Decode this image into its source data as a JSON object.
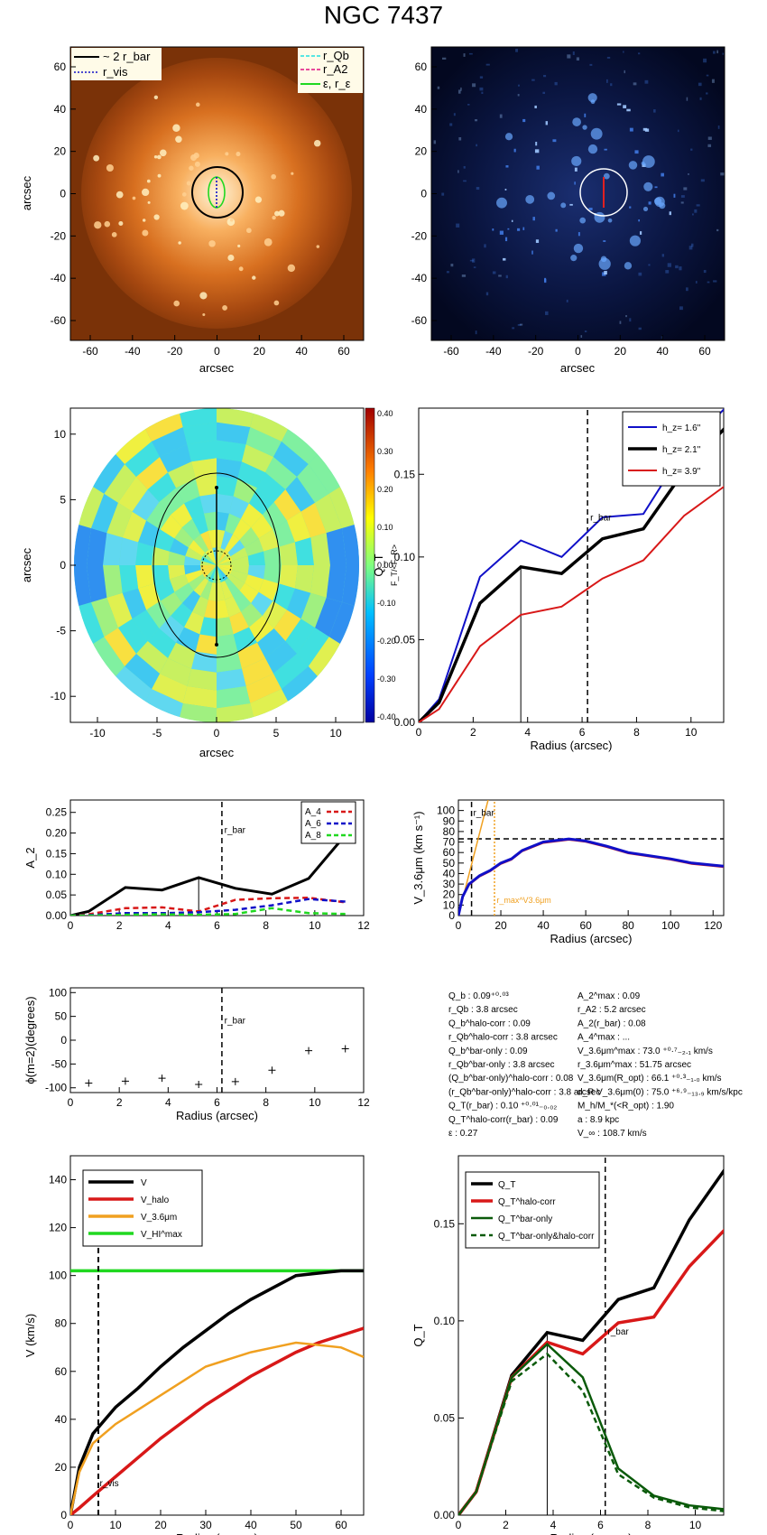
{
  "title": "NGC 7437",
  "colors": {
    "blue": "#1010c8",
    "black": "#000000",
    "red": "#d81818",
    "orange": "#f0a020",
    "green": "#20d820",
    "darkgreen": "#0a5a0a"
  },
  "panel1": {
    "xlabel": "arcsec",
    "ylabel": "arcsec",
    "legend_left": [
      "~ 2 r_bar",
      "r_vis"
    ],
    "legend_right": [
      "r_Qb",
      "r_A2",
      "ε, r_ε"
    ],
    "ticks": [
      "-60",
      "-40",
      "-20",
      "0",
      "20",
      "40",
      "60"
    ]
  },
  "panel2": {
    "xlabel": "arcsec",
    "ticks": [
      "-60",
      "-40",
      "-20",
      "0",
      "20",
      "40",
      "60"
    ]
  },
  "panel3": {
    "xlabel": "arcsec",
    "ylabel": "arcsec",
    "xticks": [
      "-10",
      "-5",
      "0",
      "5",
      "10"
    ],
    "yticks": [
      "10",
      "5",
      "0",
      "-5",
      "-10"
    ],
    "cbar_label": "F_T/<F_R>",
    "cbar_ticks": [
      "0.40",
      "0.30",
      "0.20",
      "0.10",
      "0.00",
      "-0.10",
      "-0.20",
      "-0.30",
      "-0.40"
    ]
  },
  "panel4": {
    "xlabel": "Radius (arcsec)",
    "ylabel": "Q_T",
    "rbar_label": "r_bar",
    "legend": [
      "h_z=  1.6''",
      "h_z=  2.1''",
      "h_z=  3.9''"
    ],
    "chart_data": {
      "type": "line",
      "xlim": [
        0,
        11.2
      ],
      "ylim": [
        0,
        0.19
      ],
      "x": [
        0,
        0.75,
        2.25,
        3.75,
        5.25,
        6.75,
        8.25,
        9.75,
        11.25
      ],
      "series": [
        {
          "name": "h_z=  1.6''",
          "values": [
            0,
            0.014,
            0.088,
            0.11,
            0.1,
            0.124,
            0.126,
            0.165,
            0.19
          ]
        },
        {
          "name": "h_z=  2.1''",
          "values": [
            0,
            0.012,
            0.072,
            0.094,
            0.09,
            0.111,
            0.117,
            0.152,
            0.178
          ]
        },
        {
          "name": "h_z=  3.9''",
          "values": [
            0,
            0.008,
            0.046,
            0.065,
            0.07,
            0.087,
            0.098,
            0.125,
            0.143
          ]
        }
      ],
      "yticks": [
        "0.00",
        "0.05",
        "0.10",
        "0.15"
      ],
      "xticks": [
        "0",
        "2",
        "4",
        "6",
        "8",
        "10"
      ]
    }
  },
  "panel5": {
    "xlabel": "",
    "ylabel": "A_2",
    "rbar_label": "r_bar",
    "legend": [
      "A_4",
      "A_6",
      "A_8"
    ],
    "chart_data": {
      "type": "line",
      "xlim": [
        0,
        12
      ],
      "ylim": [
        0,
        0.28
      ],
      "x": [
        0,
        0.75,
        2.25,
        3.75,
        5.25,
        6.75,
        8.25,
        9.75,
        11.25
      ],
      "series": [
        {
          "name": "A_2",
          "values": [
            0,
            0.01,
            0.068,
            0.062,
            0.092,
            0.066,
            0.052,
            0.09,
            0.195
          ]
        },
        {
          "name": "A_4",
          "values": [
            0,
            0.003,
            0.018,
            0.02,
            0.01,
            0.038,
            0.042,
            0.043,
            0.032
          ]
        },
        {
          "name": "A_6",
          "values": [
            0,
            0.001,
            0.006,
            0.006,
            0.008,
            0.014,
            0.025,
            0.04,
            0.034
          ]
        },
        {
          "name": "A_8",
          "values": [
            0,
            0.0,
            0.002,
            0.003,
            0.002,
            0.004,
            0.018,
            0.006,
            0.004
          ]
        }
      ],
      "yticks": [
        "0.00",
        "0.05",
        "0.10",
        "0.15",
        "0.20",
        "0.25"
      ],
      "xticks": [
        "0",
        "2",
        "4",
        "6",
        "8",
        "10",
        "12"
      ]
    }
  },
  "panel6": {
    "xlabel": "Radius (arcsec)",
    "ylabel": "V_3.6μm (km s⁻¹)",
    "rbar_label": "r_bar",
    "rmax_label": "r_max^V3.6μm",
    "chart_data": {
      "type": "line",
      "xlim": [
        0,
        125
      ],
      "ylim": [
        0,
        110
      ],
      "x": [
        0,
        2,
        5,
        10,
        15,
        20,
        25,
        30,
        40,
        52,
        60,
        70,
        80,
        90,
        100,
        110,
        120,
        125
      ],
      "series": [
        {
          "name": "V_3.6μm",
          "values": [
            0,
            18,
            30,
            38,
            43,
            50,
            54,
            62,
            70,
            73,
            71,
            66,
            60,
            57,
            54,
            50,
            48,
            47
          ]
        }
      ],
      "vmax": 73,
      "yticks": [
        "0",
        "10",
        "20",
        "30",
        "40",
        "50",
        "60",
        "70",
        "80",
        "90",
        "100"
      ],
      "xticks": [
        "0",
        "20",
        "40",
        "60",
        "80",
        "100",
        "120"
      ]
    }
  },
  "panel7": {
    "xlabel": "Radius (arcsec)",
    "ylabel": "ϕ(m=2)(degrees)",
    "rbar_label": "r_bar",
    "chart_data": {
      "type": "scatter",
      "xlim": [
        0,
        12
      ],
      "ylim": [
        -110,
        110
      ],
      "x": [
        0.75,
        2.25,
        3.75,
        5.25,
        6.75,
        8.25,
        9.75,
        11.25
      ],
      "values": [
        -90,
        -86,
        -80,
        -93,
        -87,
        -63,
        -22,
        -18
      ],
      "yticks": [
        "-100",
        "-50",
        "0",
        "50",
        "100"
      ],
      "xticks": [
        "0",
        "2",
        "4",
        "6",
        "8",
        "10",
        "12"
      ]
    }
  },
  "params_left": [
    "Q_b : 0.09⁺⁰·⁰³",
    "r_Qb : 3.8 arcsec",
    "Q_b^halo-corr : 0.09",
    "r_Qb^halo-corr : 3.8 arcsec",
    "Q_b^bar-only : 0.09",
    "r_Qb^bar-only : 3.8 arcsec",
    "(Q_b^bar-only)^halo-corr : 0.08",
    "(r_Qb^bar-only)^halo-corr : 3.8 arcsec",
    "Q_T(r_bar) : 0.10 ⁺⁰·⁰¹₋₀.₀₂",
    "Q_T^halo-corr(r_bar) : 0.09",
    "ε : 0.27"
  ],
  "params_right": [
    "A_2^max : 0.09",
    "r_A2 : 5.2 arcsec",
    "A_2(r_bar) : 0.08",
    "A_4^max : ...",
    "V_3.6μm^max : 73.0 ⁺⁰·⁷₋₂.₁ km/s",
    "r_3.6μm^max : 51.75 arcsec",
    "V_3.6μm(R_opt) : 66.1 ⁺⁰·³₋₁.₀ km/s",
    "d_R V_3.6μm(0) : 75.0 ⁺⁶·⁹₋₁₃.₉ km/s/kpc",
    "M_h/M_*(<R_opt) : 1.90",
    "a : 8.9 kpc",
    "V_∞ : 108.7 km/s"
  ],
  "panel8": {
    "xlabel": "Radius (arcsec)",
    "ylabel": "V (km/s)",
    "rvis_label": "r_vis",
    "legend": [
      "V",
      "V_halo",
      "V_3.6μm",
      "V_HI^max"
    ],
    "chart_data": {
      "type": "line",
      "xlim": [
        0,
        65
      ],
      "ylim": [
        0,
        150
      ],
      "x": [
        0,
        2,
        5,
        10,
        15,
        20,
        25,
        30,
        35,
        40,
        45,
        50,
        55,
        60,
        65
      ],
      "series": [
        {
          "name": "V",
          "values": [
            0,
            20,
            34,
            45,
            53,
            62,
            70,
            77,
            84,
            90,
            95,
            100,
            101,
            102,
            102
          ]
        },
        {
          "name": "V_halo",
          "values": [
            0,
            3,
            8,
            16,
            24,
            32,
            39,
            46,
            52,
            58,
            63,
            68,
            72,
            75,
            78
          ]
        },
        {
          "name": "V_3.6μm",
          "values": [
            0,
            18,
            30,
            38,
            44,
            50,
            56,
            62,
            65,
            68,
            70,
            72,
            71,
            70,
            66
          ]
        }
      ],
      "vhi_max": 102,
      "yticks": [
        "0",
        "20",
        "40",
        "60",
        "80",
        "100",
        "120",
        "140"
      ],
      "xticks": [
        "0",
        "10",
        "20",
        "30",
        "40",
        "50",
        "60"
      ]
    }
  },
  "panel9": {
    "xlabel": "Radius (arcsec)",
    "ylabel": "Q_T",
    "rbar_label": "r_bar",
    "legend": [
      "Q_T",
      "Q_T^halo-corr",
      "Q_T^bar-only",
      "Q_T^bar-only&halo-corr"
    ],
    "chart_data": {
      "type": "line",
      "xlim": [
        0,
        11.2
      ],
      "ylim": [
        0,
        0.185
      ],
      "x": [
        0,
        0.75,
        2.25,
        3.75,
        5.25,
        6.75,
        8.25,
        9.75,
        11.25
      ],
      "series": [
        {
          "name": "Q_T",
          "values": [
            0,
            0.012,
            0.072,
            0.094,
            0.09,
            0.111,
            0.117,
            0.152,
            0.178
          ]
        },
        {
          "name": "Q_T^halo-corr",
          "values": [
            0,
            0.012,
            0.071,
            0.089,
            0.083,
            0.099,
            0.102,
            0.128,
            0.147
          ]
        },
        {
          "name": "Q_T^bar-only",
          "values": [
            0,
            0.012,
            0.071,
            0.088,
            0.071,
            0.024,
            0.01,
            0.005,
            0.003
          ]
        },
        {
          "name": "Q_T^bar-only&halo-corr",
          "values": [
            0,
            0.012,
            0.069,
            0.083,
            0.064,
            0.021,
            0.009,
            0.004,
            0.002
          ]
        }
      ],
      "yticks": [
        "0.00",
        "0.05",
        "0.10",
        "0.15"
      ],
      "xticks": [
        "0",
        "2",
        "4",
        "6",
        "8",
        "10"
      ]
    }
  }
}
